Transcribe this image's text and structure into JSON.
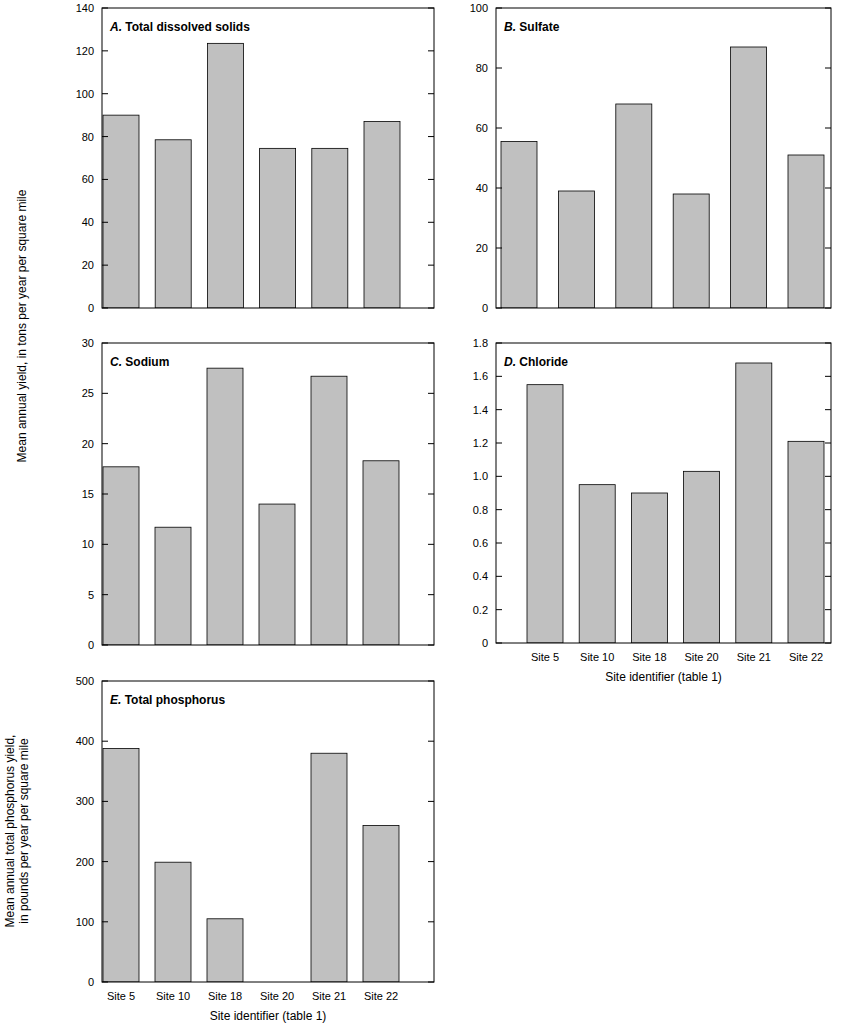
{
  "chart_data": [
    {
      "type": "bar",
      "title": "A. Total dissolved solids",
      "y_label": "Mean annual yield, in tons per year per square mile",
      "categories": [
        "Site 5",
        "Site 10",
        "Site 18",
        "Site 20",
        "Site 21",
        "Site 22"
      ],
      "values": [
        90,
        78.5,
        123.5,
        74.5,
        74.5,
        87
      ],
      "color": "#c0c0c0",
      "ylim": [
        0,
        140
      ],
      "yticks": [
        0,
        20,
        40,
        60,
        80,
        100,
        120,
        140
      ],
      "grid": false,
      "tick_labels": "y"
    },
    {
      "type": "bar",
      "title": "B. Sulfate",
      "categories": [
        "Site 5",
        "Site 10",
        "Site 18",
        "Site 20",
        "Site 21",
        "Site 22"
      ],
      "values": [
        55.5,
        39,
        68,
        38,
        87,
        51
      ],
      "color": "#c0c0c0",
      "ylim": [
        0,
        100
      ],
      "yticks": [
        0,
        20,
        40,
        60,
        80,
        100
      ],
      "grid": false,
      "tick_labels": "y"
    },
    {
      "type": "bar",
      "title": "C. Sodium",
      "categories": [
        "Site 5",
        "Site 10",
        "Site 18",
        "Site 20",
        "Site 21",
        "Site 22"
      ],
      "values": [
        17.7,
        11.7,
        27.5,
        14,
        26.7,
        18.3
      ],
      "color": "#c0c0c0",
      "ylim": [
        0,
        30
      ],
      "yticks": [
        0,
        5,
        10,
        15,
        20,
        25,
        30
      ],
      "grid": false,
      "tick_labels": "y"
    },
    {
      "type": "bar",
      "title": "D. Chloride",
      "x_label": "Site identifier (table 1)",
      "categories": [
        "Site 5",
        "Site 10",
        "Site 18",
        "Site 20",
        "Site 21",
        "Site 22"
      ],
      "values": [
        1.55,
        0.95,
        0.9,
        1.03,
        1.68,
        1.21
      ],
      "color": "#c0c0c0",
      "ylim": [
        0,
        1.8
      ],
      "yticks": [
        0,
        0.2,
        0.4,
        0.6,
        0.8,
        {
          "value": 1,
          "label": "1.0"
        },
        1.2,
        1.4,
        1.6,
        1.8
      ],
      "grid": false
    },
    {
      "type": "bar",
      "title": "E. Total phosphorus",
      "x_label": "Site identifier (table 1)",
      "y_label": [
        "Mean annual total phosphorus yield,",
        "in pounds per year per square mile"
      ],
      "categories": [
        "Site 5",
        "Site 10",
        "Site 18",
        "Site 20",
        "Site 21",
        "Site 22"
      ],
      "values": [
        388,
        199,
        105,
        null,
        380,
        260
      ],
      "color": "#c0c0c0",
      "ylim": [
        0,
        500
      ],
      "yticks": [
        0,
        100,
        200,
        300,
        400,
        500
      ],
      "grid": false
    }
  ]
}
